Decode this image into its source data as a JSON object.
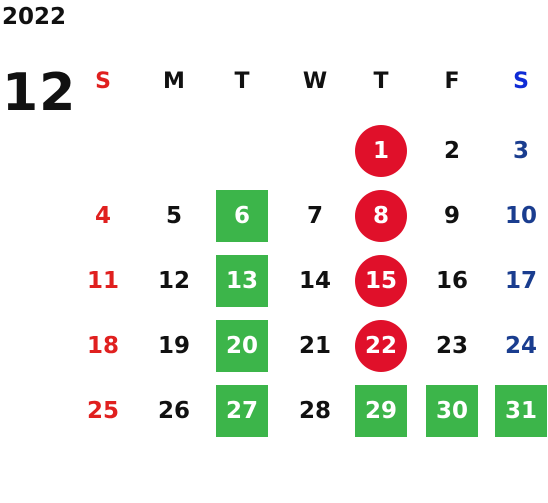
{
  "calendar": {
    "year": "2022",
    "month": "12",
    "weekdays": [
      "S",
      "M",
      "T",
      "W",
      "T",
      "F",
      "S"
    ],
    "first_weekday_index": 4,
    "days_in_month": 31,
    "colors": {
      "sunday": "#e0201f",
      "saturday": "#1a3d8f",
      "weekday": "#111111",
      "green_highlight": "#3cb54a",
      "red_highlight": "#e0102a"
    },
    "green_square_days": [
      6,
      13,
      20,
      27,
      29,
      30,
      31
    ],
    "red_circle_days": [
      1,
      8,
      15,
      22
    ]
  }
}
